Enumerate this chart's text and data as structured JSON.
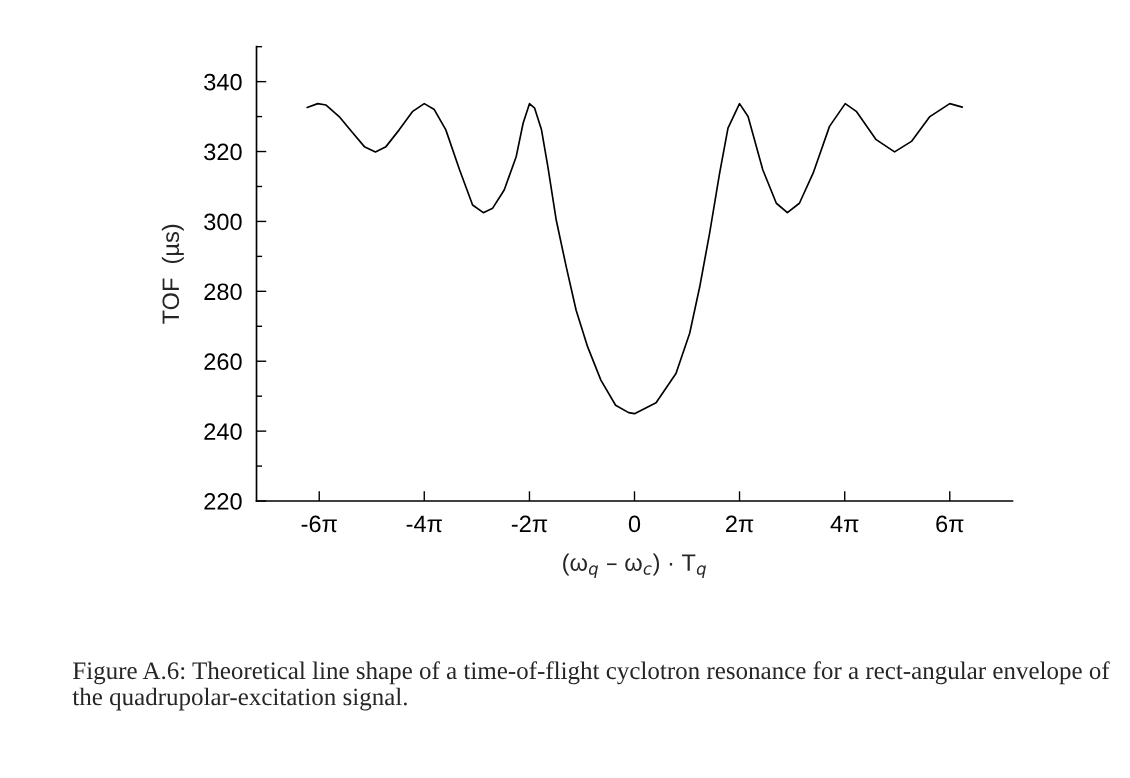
{
  "chart_data": {
    "type": "line",
    "xlabel": "(ω$_{q}$ – ω$_{c}$) · T$_{q}$",
    "ylabel": "TOF  (µs)",
    "annotations": [
      "Figure A.6: Theoretical line shape of a time-of-flight cyclotron resonance for a rect-angular envelope of the quadrupolar-excitation signal."
    ],
    "series": [
      {
        "color": "#000000",
        "x": [
          -19.57,
          -18.94,
          -18.44,
          -17.66,
          -16.84,
          -16.15,
          -15.49,
          -14.86,
          -14.07,
          -13.26,
          -12.57,
          -11.97,
          -11.28,
          -10.46,
          -9.68,
          -9.04,
          -8.48,
          -7.79,
          -7.07,
          -6.66,
          -6.28,
          -5.97,
          -5.56,
          -5.18,
          -4.68,
          -4.08,
          -3.49,
          -2.8,
          -2.01,
          -1.13,
          -0.35,
          0,
          1.29,
          2.48,
          3.3,
          3.9,
          4.49,
          5.09,
          5.59,
          6.28,
          6.79,
          7.67,
          8.48,
          9.14,
          9.86,
          10.68,
          11.66,
          12.6,
          13.26,
          14.45,
          15.55,
          16.56,
          17.66,
          18.85,
          19.6
        ],
        "values": [
          332.6,
          333.7,
          333.3,
          330.0,
          325.3,
          321.4,
          319.9,
          321.4,
          326.2,
          331.5,
          333.7,
          332.0,
          326.2,
          314.8,
          304.7,
          302.5,
          303.8,
          309.0,
          318.6,
          328.1,
          333.7,
          332.4,
          326.2,
          315.7,
          300.4,
          287.0,
          274.6,
          264.1,
          254.6,
          247.4,
          245.3,
          245.0,
          248.1,
          256.5,
          268.0,
          281.3,
          296.6,
          313.8,
          326.7,
          333.7,
          330.0,
          314.8,
          305.2,
          302.5,
          305.2,
          313.8,
          327.2,
          333.7,
          331.5,
          323.4,
          319.9,
          322.9,
          330.0,
          333.7,
          332.7
        ]
      }
    ],
    "xlim": [
      -22.6,
      22.6
    ],
    "xticks": [
      {
        "value": -18.85,
        "label": "-6π"
      },
      {
        "value": -12.57,
        "label": "-4π"
      },
      {
        "value": -6.28,
        "label": "-2π"
      },
      0,
      {
        "value": 6.28,
        "label": "2π"
      },
      {
        "value": 12.57,
        "label": "4π"
      },
      {
        "value": 18.85,
        "label": "6π"
      }
    ],
    "ylim": [
      220,
      350
    ],
    "yticks": [
      220,
      {
        "value": 230,
        "label": null
      },
      240,
      {
        "value": 250,
        "label": null
      },
      260,
      {
        "value": 270,
        "label": null
      },
      280,
      {
        "value": 290,
        "label": null
      },
      300,
      {
        "value": 310,
        "label": null
      },
      320,
      {
        "value": 330,
        "label": null
      },
      340,
      {
        "value": 350,
        "label": null
      }
    ],
    "grid": false,
    "legend": false,
    "marker": "none",
    "line_style": "solid"
  }
}
